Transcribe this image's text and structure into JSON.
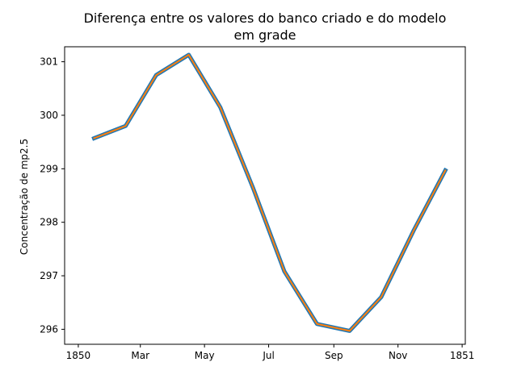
{
  "chart_data": {
    "type": "line",
    "title": "Diferença entre os valores do banco criado e do modelo em grade",
    "title_lines": [
      "Diferença entre os valores do banco criado e do modelo",
      "em grade"
    ],
    "xlabel": "",
    "ylabel": "Concentração de mp2.5",
    "x_tick_labels": [
      "1850",
      "Mar",
      "May",
      "Jul",
      "Sep",
      "Nov",
      "1851"
    ],
    "y_ticks": [
      296,
      297,
      298,
      299,
      300,
      301
    ],
    "ylim": [
      295.72,
      301.28
    ],
    "grid": false,
    "series": [
      {
        "color": "#1f77b4",
        "x": [
          "1850-01-16",
          "1850-02-15",
          "1850-03-16",
          "1850-04-16",
          "1850-05-16",
          "1850-06-16",
          "1850-07-16",
          "1850-08-16",
          "1850-09-16",
          "1850-10-16",
          "1850-11-16",
          "1850-12-16"
        ],
        "y": [
          299.57,
          299.8,
          300.75,
          301.13,
          300.15,
          298.65,
          297.08,
          296.1,
          295.97,
          296.6,
          297.85,
          298.97
        ]
      },
      {
        "color": "#ff7f0e",
        "x": [
          "1850-01-16",
          "1850-02-15",
          "1850-03-16",
          "1850-04-16",
          "1850-05-16",
          "1850-06-16",
          "1850-07-16",
          "1850-08-16",
          "1850-09-16",
          "1850-10-16",
          "1850-11-16",
          "1850-12-16"
        ],
        "y": [
          299.57,
          299.8,
          300.75,
          301.13,
          300.15,
          298.65,
          297.08,
          296.1,
          295.97,
          296.6,
          297.85,
          298.97
        ]
      }
    ]
  }
}
